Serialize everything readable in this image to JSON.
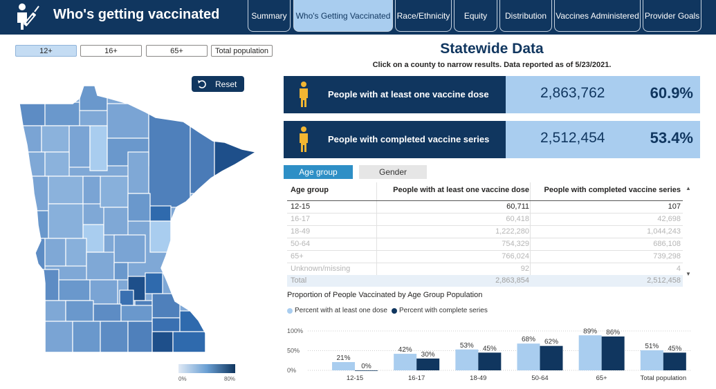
{
  "header": {
    "title": "Who's getting vaccinated",
    "nav": [
      {
        "label": "Summary",
        "active": false
      },
      {
        "label": "Who's Getting Vaccinated",
        "active": true
      },
      {
        "label": "Race/Ethnicity",
        "active": false
      },
      {
        "label": "Equity",
        "active": false
      },
      {
        "label": "Distribution",
        "active": false
      },
      {
        "label": "Vaccines Administered",
        "active": false
      },
      {
        "label": "Provider Goals",
        "active": false
      }
    ]
  },
  "filters": [
    {
      "label": "12+",
      "active": true
    },
    {
      "label": "16+",
      "active": false
    },
    {
      "label": "65+",
      "active": false
    },
    {
      "label": "Total population",
      "active": false
    }
  ],
  "map": {
    "reset_label": "Reset",
    "legend_min": "0%",
    "legend_max": "80%"
  },
  "statewide": {
    "title": "Statewide Data",
    "subtitle": "Click on a county to narrow results. Data reported as of 5/23/2021."
  },
  "kpis": [
    {
      "label": "People with at least one vaccine dose",
      "count": "2,863,762",
      "percent": "60.9%",
      "icon": "person-icon"
    },
    {
      "label": "People with completed vaccine series",
      "count": "2,512,454",
      "percent": "53.4%",
      "icon": "person-icon"
    }
  ],
  "tabs": [
    {
      "label": "Age group",
      "active": true
    },
    {
      "label": "Gender",
      "active": false
    }
  ],
  "table": {
    "headers": [
      "Age group",
      "People with at least one vaccine dose",
      "People with completed vaccine series"
    ],
    "rows": [
      {
        "group": "12-15",
        "dose": "60,711",
        "complete": "107"
      },
      {
        "group": "16-17",
        "dose": "60,418",
        "complete": "42,698"
      },
      {
        "group": "18-49",
        "dose": "1,222,280",
        "complete": "1,044,243"
      },
      {
        "group": "50-64",
        "dose": "754,329",
        "complete": "686,108"
      },
      {
        "group": "65+",
        "dose": "766,024",
        "complete": "739,298"
      },
      {
        "group": "Unknown/missing",
        "dose": "92",
        "complete": "4"
      }
    ],
    "total": {
      "group": "Total",
      "dose": "2,863,854",
      "complete": "2,512,458"
    }
  },
  "colors": {
    "navy": "#10365f",
    "light_blue": "#a9cdef",
    "tab_blue": "#2e8fc6",
    "icon_gold": "#f2b632"
  },
  "chart_data": {
    "type": "bar",
    "title": "Proportion of People Vaccinated by Age Group Population",
    "categories": [
      "12-15",
      "16-17",
      "18-49",
      "50-64",
      "65+",
      "Total population"
    ],
    "series": [
      {
        "name": "Percent with at least one dose",
        "color": "#a9cdef",
        "values": [
          21,
          42,
          53,
          68,
          89,
          51
        ]
      },
      {
        "name": "Percent with complete series",
        "color": "#10365f",
        "values": [
          0,
          30,
          45,
          62,
          86,
          45
        ]
      }
    ],
    "yticks": [
      "100%",
      "50%",
      "0%"
    ],
    "ylim": [
      0,
      100
    ],
    "legend_position": "top-left",
    "grid": true
  }
}
